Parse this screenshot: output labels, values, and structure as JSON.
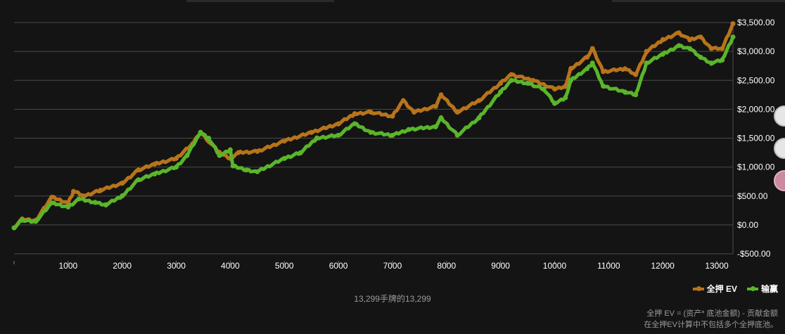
{
  "chart_data": {
    "type": "line",
    "xlim": [
      0,
      13299
    ],
    "ylim": [
      -500,
      3500
    ],
    "x_ticks": [
      0,
      1000,
      2000,
      3000,
      4000,
      5000,
      6000,
      7000,
      8000,
      9000,
      10000,
      11000,
      12000,
      13000
    ],
    "x_tick_labels": [
      "",
      "1000",
      "2000",
      "3000",
      "4000",
      "5000",
      "6000",
      "7000",
      "8000",
      "9000",
      "10000",
      "11000",
      "12000",
      "13000"
    ],
    "y_ticks": [
      -500,
      0,
      500,
      1000,
      1500,
      2000,
      2500,
      3000,
      3500
    ],
    "y_tick_labels": [
      "-$500.00",
      "$0.00",
      "$500.00",
      "$1,000.00",
      "$1,500.00",
      "$2,000.00",
      "$2,500.00",
      "$3,000.00",
      "$3,500.00"
    ],
    "grid": true,
    "legend": "bottom-right",
    "series": [
      {
        "name": "全押 EV",
        "color": "#b8741a",
        "points": [
          [
            0,
            -50
          ],
          [
            150,
            100
          ],
          [
            400,
            80
          ],
          [
            700,
            480
          ],
          [
            1000,
            380
          ],
          [
            1100,
            580
          ],
          [
            1300,
            500
          ],
          [
            1600,
            600
          ],
          [
            2000,
            720
          ],
          [
            2300,
            950
          ],
          [
            2600,
            1050
          ],
          [
            3000,
            1150
          ],
          [
            3300,
            1400
          ],
          [
            3450,
            1600
          ],
          [
            3600,
            1450
          ],
          [
            3800,
            1250
          ],
          [
            4000,
            1150
          ],
          [
            4150,
            1250
          ],
          [
            4500,
            1270
          ],
          [
            5000,
            1450
          ],
          [
            5500,
            1600
          ],
          [
            6000,
            1750
          ],
          [
            6300,
            1920
          ],
          [
            6600,
            1950
          ],
          [
            7000,
            1880
          ],
          [
            7200,
            2150
          ],
          [
            7400,
            1950
          ],
          [
            7800,
            2050
          ],
          [
            7900,
            2250
          ],
          [
            8200,
            1950
          ],
          [
            8600,
            2150
          ],
          [
            9000,
            2450
          ],
          [
            9200,
            2600
          ],
          [
            9600,
            2500
          ],
          [
            10000,
            2350
          ],
          [
            10200,
            2400
          ],
          [
            10300,
            2700
          ],
          [
            10600,
            2900
          ],
          [
            10700,
            3050
          ],
          [
            10900,
            2650
          ],
          [
            11300,
            2700
          ],
          [
            11500,
            2600
          ],
          [
            11700,
            3000
          ],
          [
            12000,
            3200
          ],
          [
            12300,
            3320
          ],
          [
            12500,
            3200
          ],
          [
            12700,
            3250
          ],
          [
            12900,
            3050
          ],
          [
            13100,
            3050
          ],
          [
            13299,
            3480
          ]
        ]
      },
      {
        "name": "输赢",
        "color": "#5ab52a",
        "points": [
          [
            0,
            -50
          ],
          [
            150,
            80
          ],
          [
            400,
            60
          ],
          [
            700,
            380
          ],
          [
            1000,
            310
          ],
          [
            1200,
            450
          ],
          [
            1500,
            390
          ],
          [
            1700,
            350
          ],
          [
            2000,
            500
          ],
          [
            2300,
            780
          ],
          [
            2600,
            880
          ],
          [
            3000,
            1000
          ],
          [
            3200,
            1200
          ],
          [
            3450,
            1600
          ],
          [
            3600,
            1500
          ],
          [
            3800,
            1200
          ],
          [
            4000,
            1300
          ],
          [
            4050,
            1020
          ],
          [
            4300,
            950
          ],
          [
            4500,
            920
          ],
          [
            5000,
            1150
          ],
          [
            5300,
            1250
          ],
          [
            5600,
            1500
          ],
          [
            6000,
            1550
          ],
          [
            6300,
            1750
          ],
          [
            6600,
            1600
          ],
          [
            7000,
            1550
          ],
          [
            7300,
            1650
          ],
          [
            7800,
            1700
          ],
          [
            7900,
            1850
          ],
          [
            8200,
            1550
          ],
          [
            8600,
            1850
          ],
          [
            9000,
            2300
          ],
          [
            9200,
            2500
          ],
          [
            9500,
            2450
          ],
          [
            9800,
            2350
          ],
          [
            10000,
            2100
          ],
          [
            10200,
            2200
          ],
          [
            10300,
            2500
          ],
          [
            10600,
            2700
          ],
          [
            10700,
            2800
          ],
          [
            10900,
            2400
          ],
          [
            11300,
            2300
          ],
          [
            11500,
            2250
          ],
          [
            11700,
            2800
          ],
          [
            12000,
            2950
          ],
          [
            12300,
            3100
          ],
          [
            12500,
            3050
          ],
          [
            12700,
            2900
          ],
          [
            12900,
            2800
          ],
          [
            13100,
            2850
          ],
          [
            13299,
            3250
          ]
        ]
      }
    ],
    "caption": "13,299手牌的13,299",
    "footnote_lines": [
      "全押 EV = (资产* 底池金额) - 贡献金额",
      "在全押EV计算中不包括多个全押底池。"
    ]
  }
}
